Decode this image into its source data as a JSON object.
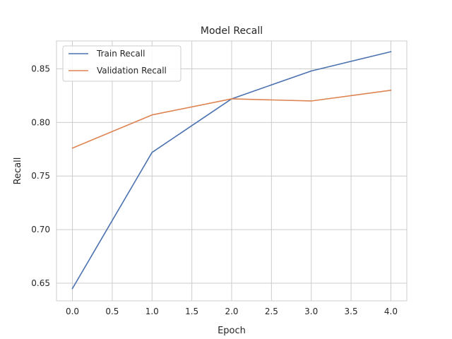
{
  "chart_data": {
    "type": "line",
    "title": "Model Recall",
    "xlabel": "Epoch",
    "ylabel": "Recall",
    "x": [
      0,
      1,
      2,
      3,
      4
    ],
    "xlim": [
      -0.2,
      4.2
    ],
    "ylim": [
      0.6335,
      0.876
    ],
    "xticks": [
      0.0,
      0.5,
      1.0,
      1.5,
      2.0,
      2.5,
      3.0,
      3.5,
      4.0
    ],
    "xtick_labels": [
      "0.0",
      "0.5",
      "1.0",
      "1.5",
      "2.0",
      "2.5",
      "3.0",
      "3.5",
      "4.0"
    ],
    "yticks": [
      0.65,
      0.7,
      0.75,
      0.8,
      0.85
    ],
    "ytick_labels": [
      "0.65",
      "0.70",
      "0.75",
      "0.80",
      "0.85"
    ],
    "grid": true,
    "legend_position": "top-left",
    "series": [
      {
        "name": "Train Recall",
        "color": "#4c72b0",
        "values": [
          0.645,
          0.772,
          0.822,
          0.848,
          0.866
        ]
      },
      {
        "name": "Validation Recall",
        "color": "#dd8452",
        "values": [
          0.776,
          0.807,
          0.822,
          0.82,
          0.83
        ]
      }
    ]
  }
}
